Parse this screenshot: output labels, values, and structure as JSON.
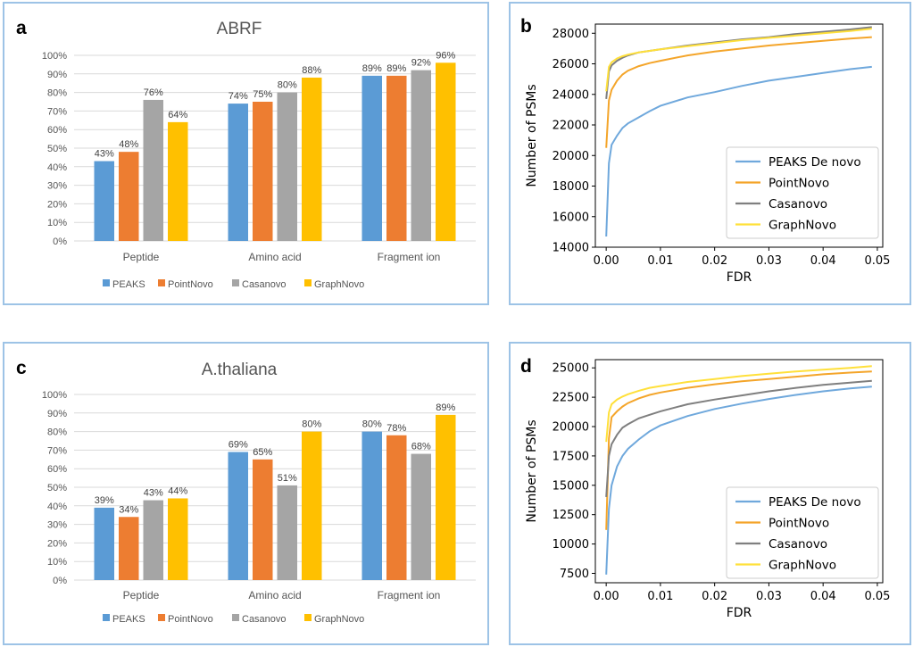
{
  "chart_data": [
    {
      "id": "a",
      "type": "bar",
      "panel_label": "a",
      "title": "ABRF",
      "categories": [
        "Peptide",
        "Amino acid",
        "Fragment ion"
      ],
      "ylim": [
        0,
        100
      ],
      "yticks": [
        "0%",
        "10%",
        "20%",
        "30%",
        "40%",
        "50%",
        "60%",
        "70%",
        "80%",
        "90%",
        "100%"
      ],
      "grid": true,
      "legend_position": "bottom",
      "series": [
        {
          "name": "PEAKS",
          "color": "#5b9bd5",
          "values": [
            43,
            74,
            89
          ],
          "labels": [
            "43%",
            "74%",
            "89%"
          ]
        },
        {
          "name": "PointNovo",
          "color": "#ed7d31",
          "values": [
            48,
            75,
            89
          ],
          "labels": [
            "48%",
            "75%",
            "89%"
          ]
        },
        {
          "name": "Casanovo",
          "color": "#a5a5a5",
          "values": [
            76,
            80,
            92
          ],
          "labels": [
            "76%",
            "80%",
            "92%"
          ]
        },
        {
          "name": "GraphNovo",
          "color": "#ffc000",
          "values": [
            64,
            88,
            96
          ],
          "labels": [
            "64%",
            "88%",
            "96%"
          ]
        }
      ]
    },
    {
      "id": "b",
      "type": "line",
      "panel_label": "b",
      "xlabel": "FDR",
      "ylabel": "Number of PSMs",
      "xlim": [
        -0.002,
        0.051
      ],
      "ylim": [
        14000,
        28600
      ],
      "xticks": [
        "0.00",
        "0.01",
        "0.02",
        "0.03",
        "0.04",
        "0.05"
      ],
      "xtick_values": [
        0,
        0.01,
        0.02,
        0.03,
        0.04,
        0.05
      ],
      "yticks": [
        "14000",
        "16000",
        "18000",
        "20000",
        "22000",
        "24000",
        "26000",
        "28000"
      ],
      "ytick_values": [
        14000,
        16000,
        18000,
        20000,
        22000,
        24000,
        26000,
        28000
      ],
      "legend_position": "lower right",
      "series": [
        {
          "name": "PEAKS De novo",
          "color": "#6fa8dc",
          "x": [
            0,
            0.0005,
            0.001,
            0.002,
            0.003,
            0.004,
            0.006,
            0.008,
            0.01,
            0.015,
            0.02,
            0.025,
            0.03,
            0.035,
            0.04,
            0.045,
            0.049
          ],
          "y": [
            14700,
            19500,
            20700,
            21300,
            21800,
            22100,
            22500,
            22900,
            23250,
            23800,
            24150,
            24550,
            24900,
            25150,
            25400,
            25650,
            25800
          ]
        },
        {
          "name": "PointNovo",
          "color": "#f4a52a",
          "x": [
            0,
            0.0005,
            0.001,
            0.002,
            0.003,
            0.004,
            0.006,
            0.008,
            0.01,
            0.015,
            0.02,
            0.025,
            0.03,
            0.035,
            0.04,
            0.045,
            0.049
          ],
          "y": [
            20500,
            23600,
            24300,
            24900,
            25300,
            25550,
            25850,
            26050,
            26200,
            26550,
            26800,
            27000,
            27200,
            27350,
            27500,
            27650,
            27750
          ]
        },
        {
          "name": "Casanovo",
          "color": "#7f7f7f",
          "x": [
            0,
            0.0005,
            0.001,
            0.002,
            0.003,
            0.004,
            0.006,
            0.008,
            0.01,
            0.015,
            0.02,
            0.025,
            0.03,
            0.035,
            0.04,
            0.045,
            0.049
          ],
          "y": [
            23700,
            25500,
            25900,
            26200,
            26400,
            26550,
            26750,
            26850,
            26950,
            27200,
            27400,
            27600,
            27750,
            27950,
            28100,
            28250,
            28400
          ]
        },
        {
          "name": "GraphNovo",
          "color": "#ffe03a",
          "x": [
            0,
            0.0005,
            0.001,
            0.002,
            0.003,
            0.004,
            0.006,
            0.008,
            0.01,
            0.015,
            0.02,
            0.025,
            0.03,
            0.035,
            0.04,
            0.045,
            0.049
          ],
          "y": [
            24200,
            25800,
            26100,
            26350,
            26500,
            26600,
            26750,
            26850,
            26950,
            27150,
            27350,
            27550,
            27700,
            27850,
            28000,
            28150,
            28300
          ]
        }
      ]
    },
    {
      "id": "c",
      "type": "bar",
      "panel_label": "c",
      "title": "A.thaliana",
      "categories": [
        "Peptide",
        "Amino acid",
        "Fragment ion"
      ],
      "ylim": [
        0,
        100
      ],
      "yticks": [
        "0%",
        "10%",
        "20%",
        "30%",
        "40%",
        "50%",
        "60%",
        "70%",
        "80%",
        "90%",
        "100%"
      ],
      "grid": true,
      "legend_position": "bottom",
      "series": [
        {
          "name": "PEAKS",
          "color": "#5b9bd5",
          "values": [
            39,
            69,
            80
          ],
          "labels": [
            "39%",
            "69%",
            "80%"
          ]
        },
        {
          "name": "PointNovo",
          "color": "#ed7d31",
          "values": [
            34,
            65,
            78
          ],
          "labels": [
            "34%",
            "65%",
            "78%"
          ]
        },
        {
          "name": "Casanovo",
          "color": "#a5a5a5",
          "values": [
            43,
            51,
            68
          ],
          "labels": [
            "43%",
            "51%",
            "68%"
          ]
        },
        {
          "name": "GraphNovo",
          "color": "#ffc000",
          "values": [
            44,
            80,
            89
          ],
          "labels": [
            "44%",
            "80%",
            "89%"
          ]
        }
      ]
    },
    {
      "id": "d",
      "type": "line",
      "panel_label": "d",
      "xlabel": "FDR",
      "ylabel": "Number of PSMs",
      "xlim": [
        -0.002,
        0.051
      ],
      "ylim": [
        6700,
        25700
      ],
      "xticks": [
        "0.00",
        "0.01",
        "0.02",
        "0.03",
        "0.04",
        "0.05"
      ],
      "xtick_values": [
        0,
        0.01,
        0.02,
        0.03,
        0.04,
        0.05
      ],
      "yticks": [
        "7500",
        "10000",
        "12500",
        "15000",
        "17500",
        "20000",
        "22500",
        "25000"
      ],
      "ytick_values": [
        7500,
        10000,
        12500,
        15000,
        17500,
        20000,
        22500,
        25000
      ],
      "legend_position": "lower right",
      "series": [
        {
          "name": "PEAKS De novo",
          "color": "#6fa8dc",
          "x": [
            0,
            0.0005,
            0.001,
            0.002,
            0.003,
            0.004,
            0.006,
            0.008,
            0.01,
            0.015,
            0.02,
            0.025,
            0.03,
            0.035,
            0.04,
            0.045,
            0.049
          ],
          "y": [
            7400,
            13000,
            15000,
            16600,
            17500,
            18100,
            18900,
            19600,
            20100,
            20900,
            21500,
            21950,
            22350,
            22700,
            23000,
            23250,
            23400
          ]
        },
        {
          "name": "PointNovo",
          "color": "#f4a52a",
          "x": [
            0,
            0.0005,
            0.001,
            0.002,
            0.003,
            0.004,
            0.006,
            0.008,
            0.01,
            0.015,
            0.02,
            0.025,
            0.03,
            0.035,
            0.04,
            0.045,
            0.049
          ],
          "y": [
            11200,
            19000,
            20800,
            21300,
            21700,
            22000,
            22400,
            22700,
            22900,
            23300,
            23600,
            23850,
            24050,
            24250,
            24450,
            24600,
            24700
          ]
        },
        {
          "name": "Casanovo",
          "color": "#7f7f7f",
          "x": [
            0,
            0.0005,
            0.001,
            0.002,
            0.003,
            0.004,
            0.006,
            0.008,
            0.01,
            0.015,
            0.02,
            0.025,
            0.03,
            0.035,
            0.04,
            0.045,
            0.049
          ],
          "y": [
            14000,
            17500,
            18500,
            19300,
            19900,
            20200,
            20700,
            21000,
            21300,
            21900,
            22300,
            22650,
            23000,
            23300,
            23550,
            23750,
            23900
          ]
        },
        {
          "name": "GraphNovo",
          "color": "#ffe03a",
          "x": [
            0,
            0.0005,
            0.001,
            0.002,
            0.003,
            0.004,
            0.006,
            0.008,
            0.01,
            0.015,
            0.02,
            0.025,
            0.03,
            0.035,
            0.04,
            0.045,
            0.049
          ],
          "y": [
            18700,
            21200,
            21900,
            22300,
            22550,
            22750,
            23050,
            23300,
            23450,
            23800,
            24050,
            24300,
            24500,
            24700,
            24850,
            25000,
            25150
          ]
        }
      ]
    }
  ]
}
